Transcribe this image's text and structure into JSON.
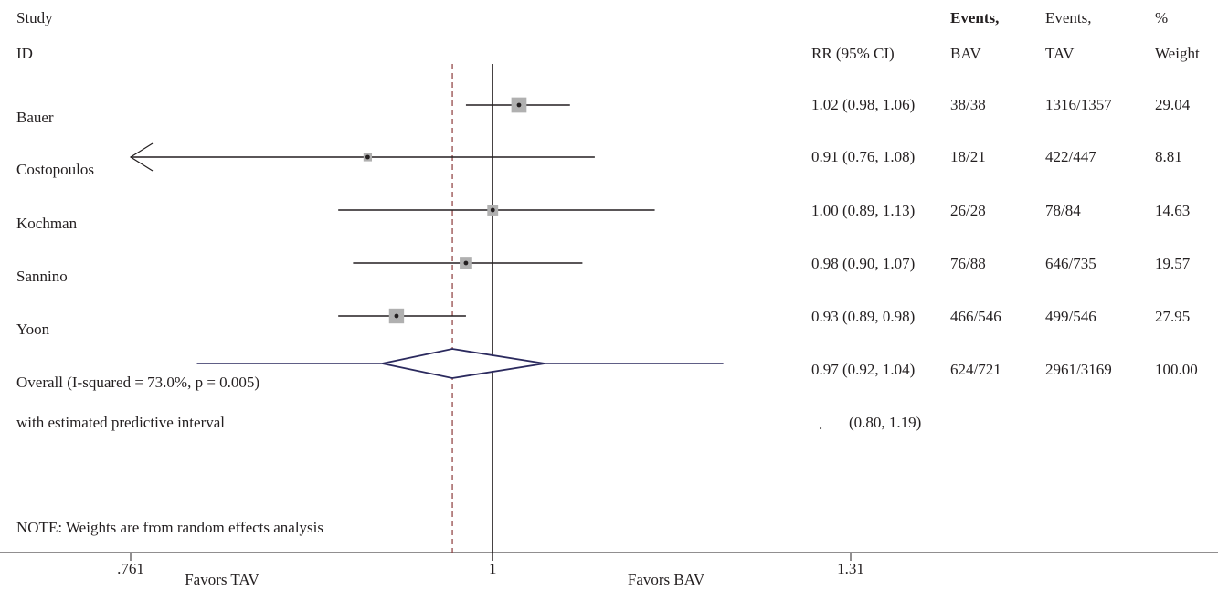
{
  "headers": {
    "study": "Study",
    "id": "ID",
    "rr": "RR (95% CI)",
    "events_bav_1": "Events,",
    "events_bav_2": "BAV",
    "events_tav_1": "Events,",
    "events_tav_2": "TAV",
    "weight_1": "%",
    "weight_2": "Weight"
  },
  "rows": [
    {
      "label": "Bauer",
      "rr_text": "1.02 (0.98, 1.06)",
      "events_bav": "38/38",
      "events_tav": "1316/1357",
      "weight": "29.04"
    },
    {
      "label": "Costopoulos",
      "rr_text": "0.91 (0.76, 1.08)",
      "events_bav": "18/21",
      "events_tav": "422/447",
      "weight": "8.81"
    },
    {
      "label": "Kochman",
      "rr_text": "1.00 (0.89, 1.13)",
      "events_bav": "26/28",
      "events_tav": "78/84",
      "weight": "14.63"
    },
    {
      "label": "Sannino",
      "rr_text": "0.98 (0.90, 1.07)",
      "events_bav": "76/88",
      "events_tav": "646/735",
      "weight": "19.57"
    },
    {
      "label": "Yoon",
      "rr_text": "0.93 (0.89, 0.98)",
      "events_bav": "466/546",
      "events_tav": "499/546",
      "weight": "27.95"
    },
    {
      "label": "Overall (I-squared = 73.0%, p = 0.005)",
      "rr_text": "0.97 (0.92, 1.04)",
      "events_bav": "624/721",
      "events_tav": "2961/3169",
      "weight": "100.00"
    }
  ],
  "predictive": {
    "label": "with estimated predictive interval",
    "dot": ".",
    "interval": "(0.80, 1.19)"
  },
  "note": "NOTE: Weights are from random effects analysis",
  "axis": {
    "ticks": [
      ".761",
      "1",
      "1.31"
    ],
    "favors_left": "Favors TAV",
    "favors_right": "Favors BAV"
  },
  "colors": {
    "diamond": "#2b2a5e",
    "pooled_line": "#8b3a3a",
    "box": "#b0b0b0",
    "ink": "#231f20"
  },
  "chart_data": {
    "type": "forest",
    "scale": "log",
    "xlim": [
      0.761,
      1.31
    ],
    "null_value": 1,
    "pooled_estimate": 0.97,
    "studies": [
      {
        "name": "Bauer",
        "rr": 1.02,
        "lo": 0.98,
        "hi": 1.06,
        "weight": 29.04
      },
      {
        "name": "Costopoulos",
        "rr": 0.91,
        "lo": 0.76,
        "hi": 1.08,
        "weight": 8.81,
        "arrow_left": true
      },
      {
        "name": "Kochman",
        "rr": 1.0,
        "lo": 0.89,
        "hi": 1.13,
        "weight": 14.63
      },
      {
        "name": "Sannino",
        "rr": 0.98,
        "lo": 0.9,
        "hi": 1.07,
        "weight": 19.57
      },
      {
        "name": "Yoon",
        "rr": 0.93,
        "lo": 0.89,
        "hi": 0.98,
        "weight": 27.95
      }
    ],
    "overall": {
      "rr": 0.97,
      "lo": 0.92,
      "hi": 1.04,
      "pi_lo": 0.8,
      "pi_hi": 1.19
    }
  }
}
